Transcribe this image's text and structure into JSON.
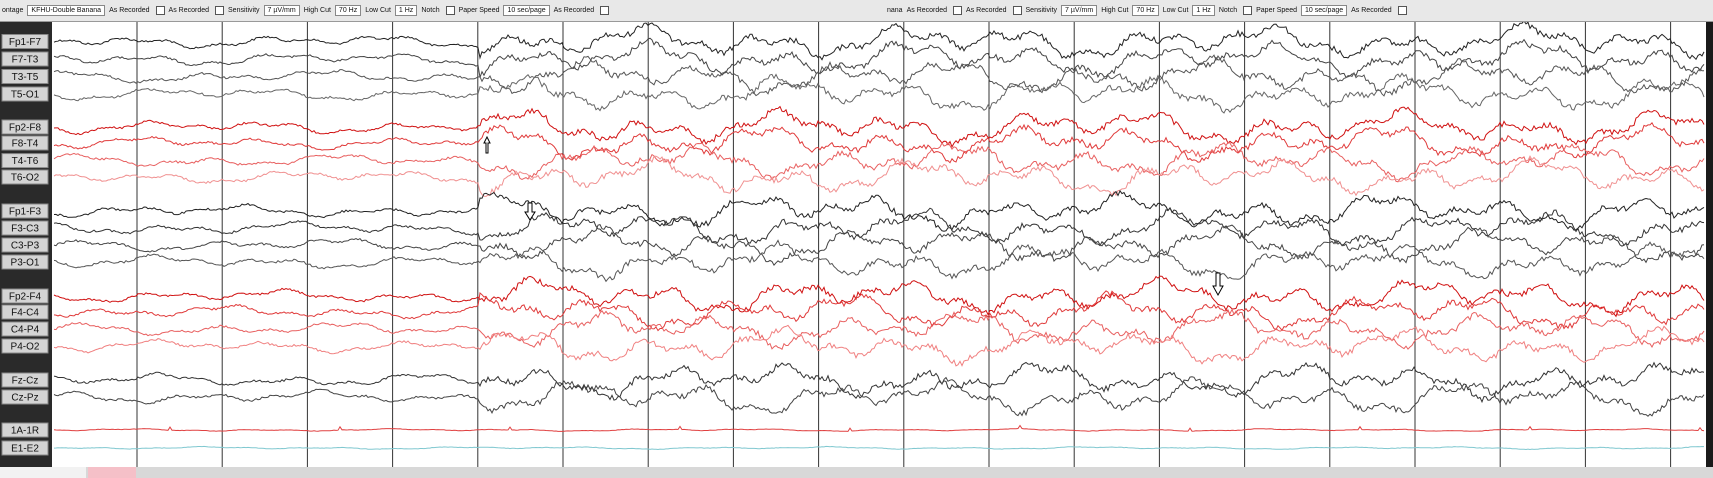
{
  "toolbars": [
    {
      "items": [
        "ontage",
        "KFHU-Double Banana",
        "As Recorded",
        "As Recorded",
        "Sensitivity",
        "7 µV/mm",
        "High Cut",
        "70 Hz",
        "Low Cut",
        "1 Hz",
        "Notch",
        "Paper Speed",
        "10 sec/page",
        "As Recorded"
      ]
    },
    {
      "items": [
        "nana",
        "As Recorded",
        "As Recorded",
        "Sensitivity",
        "7 µV/mm",
        "High Cut",
        "70 Hz",
        "Low Cut",
        "1 Hz",
        "Notch",
        "Paper Speed",
        "10 sec/page",
        "As Recorded"
      ]
    }
  ],
  "channels": [
    {
      "name": "Fp1-F7",
      "color": "#222222"
    },
    {
      "name": "F7-T3",
      "color": "#444444"
    },
    {
      "name": "T3-T5",
      "color": "#555555"
    },
    {
      "name": "T5-O1",
      "color": "#666666"
    },
    {
      "name": "Fp2-F8",
      "color": "#d01010"
    },
    {
      "name": "F8-T4",
      "color": "#e03a3a"
    },
    {
      "name": "T4-T6",
      "color": "#e86060"
    },
    {
      "name": "T6-O2",
      "color": "#f09090"
    },
    {
      "name": "Fp1-F3",
      "color": "#222222"
    },
    {
      "name": "F3-C3",
      "color": "#333333"
    },
    {
      "name": "C3-P3",
      "color": "#444444"
    },
    {
      "name": "P3-O1",
      "color": "#555555"
    },
    {
      "name": "Fp2-F4",
      "color": "#d01010"
    },
    {
      "name": "F4-C4",
      "color": "#e03a3a"
    },
    {
      "name": "C4-P4",
      "color": "#e86060"
    },
    {
      "name": "P4-O2",
      "color": "#f08080"
    },
    {
      "name": "Fz-Cz",
      "color": "#333333"
    },
    {
      "name": "Cz-Pz",
      "color": "#444444"
    },
    {
      "name": "1A-1R",
      "color": "#e04040"
    },
    {
      "name": "E1-E2",
      "color": "#80c8d0"
    }
  ]
}
